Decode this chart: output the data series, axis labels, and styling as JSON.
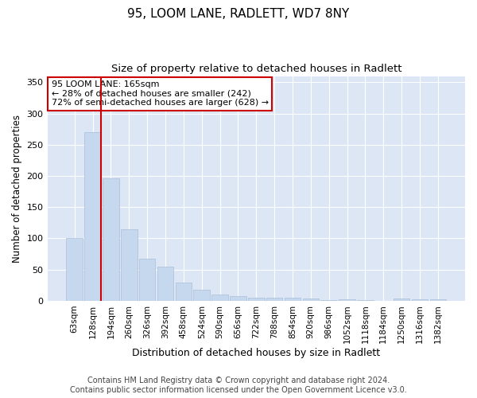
{
  "title1": "95, LOOM LANE, RADLETT, WD7 8NY",
  "title2": "Size of property relative to detached houses in Radlett",
  "xlabel": "Distribution of detached houses by size in Radlett",
  "ylabel": "Number of detached properties",
  "categories": [
    "63sqm",
    "128sqm",
    "194sqm",
    "260sqm",
    "326sqm",
    "392sqm",
    "458sqm",
    "524sqm",
    "590sqm",
    "656sqm",
    "722sqm",
    "788sqm",
    "854sqm",
    "920sqm",
    "986sqm",
    "1052sqm",
    "1118sqm",
    "1184sqm",
    "1250sqm",
    "1316sqm",
    "1382sqm"
  ],
  "values": [
    100,
    270,
    196,
    115,
    67,
    54,
    29,
    18,
    10,
    8,
    5,
    5,
    5,
    3,
    1,
    2,
    1,
    0,
    3,
    2,
    2
  ],
  "bar_color": "#c5d8ee",
  "bar_edgecolor": "#aabfd8",
  "vline_color": "#cc0000",
  "annotation_text": "95 LOOM LANE: 165sqm\n← 28% of detached houses are smaller (242)\n72% of semi-detached houses are larger (628) →",
  "annotation_box_edgecolor": "#cc0000",
  "ylim": [
    0,
    360
  ],
  "yticks": [
    0,
    50,
    100,
    150,
    200,
    250,
    300,
    350
  ],
  "plot_bg_color": "#dce6f5",
  "footer_text": "Contains HM Land Registry data © Crown copyright and database right 2024.\nContains public sector information licensed under the Open Government Licence v3.0.",
  "title1_fontsize": 11,
  "title2_fontsize": 9.5,
  "xlabel_fontsize": 9,
  "ylabel_fontsize": 8.5,
  "footer_fontsize": 7,
  "tick_fontsize": 7.5,
  "ytick_fontsize": 8
}
